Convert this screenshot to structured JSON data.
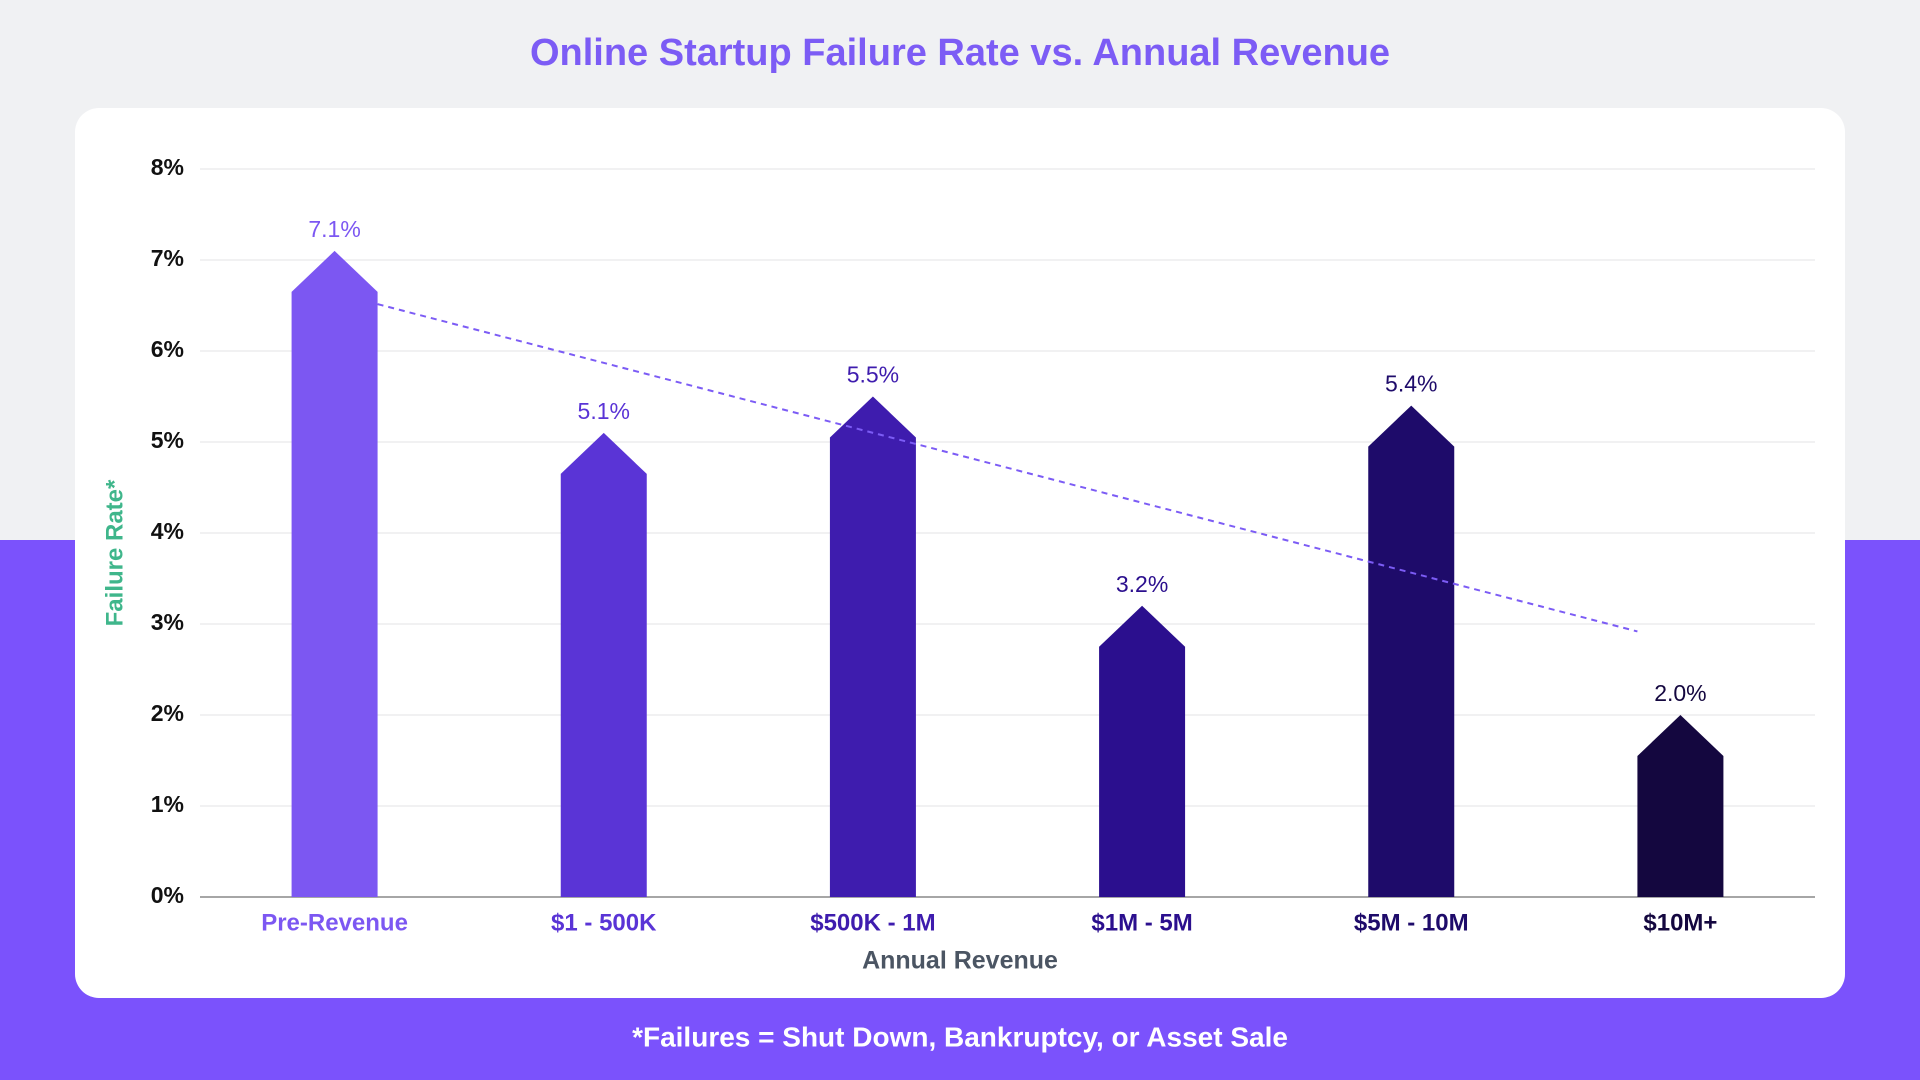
{
  "chart_data": {
    "type": "bar",
    "title": "Online Startup Failure Rate vs. Annual Revenue",
    "x_label": "Annual Revenue",
    "y_label": "Failure Rate*",
    "footnote": "*Failures = Shut Down, Bankruptcy, or Asset Sale",
    "categories": [
      "Pre-Revenue",
      "$1 - 500K",
      "$500K - 1M",
      "$1M - 5M",
      "$5M - 10M",
      "$10M+"
    ],
    "values": [
      7.1,
      5.1,
      5.5,
      3.2,
      5.4,
      2.0
    ],
    "value_labels": [
      "7.1%",
      "5.1%",
      "5.5%",
      "3.2%",
      "5.4%",
      "2.0%"
    ],
    "colors": [
      "#7c57f2",
      "#5a34d6",
      "#3e1cae",
      "#2b0f8e",
      "#1e0b6a",
      "#14073f"
    ],
    "ylim": [
      0,
      8
    ],
    "yticks": [
      {
        "value": 0,
        "label": "0%"
      },
      {
        "value": 1,
        "label": "1%"
      },
      {
        "value": 2,
        "label": "2%"
      },
      {
        "value": 3,
        "label": "3%"
      },
      {
        "value": 4,
        "label": "4%"
      },
      {
        "value": 5,
        "label": "5%"
      },
      {
        "value": 6,
        "label": "6%"
      },
      {
        "value": 7,
        "label": "7%"
      },
      {
        "value": 8,
        "label": "8%"
      }
    ],
    "grid": true,
    "trendline": true,
    "trendline_color": "#7c5cf5"
  }
}
